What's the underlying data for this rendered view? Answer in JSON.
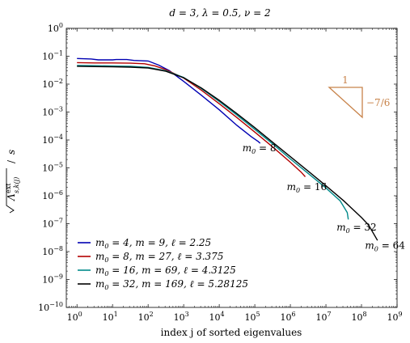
{
  "chart_data": {
    "type": "line",
    "title": "d = 3, λ = 0.5, ν = 2",
    "xlabel": "index j of sorted eigenvalues",
    "ylabel": "√(Λ^ext_{s,k(j)}) / s",
    "x_scale": "log",
    "y_scale": "log",
    "xlim_exp": [
      -0.3,
      9
    ],
    "ylim_exp": [
      -10,
      0
    ],
    "x_ticks": [
      {
        "base": "10",
        "exp": "0",
        "value": 1
      },
      {
        "base": "10",
        "exp": "1",
        "value": 10
      },
      {
        "base": "10",
        "exp": "2",
        "value": 100
      },
      {
        "base": "10",
        "exp": "3",
        "value": 1000
      },
      {
        "base": "10",
        "exp": "4",
        "value": 10000
      },
      {
        "base": "10",
        "exp": "5",
        "value": 100000
      },
      {
        "base": "10",
        "exp": "6",
        "value": 1000000
      },
      {
        "base": "10",
        "exp": "7",
        "value": 10000000
      },
      {
        "base": "10",
        "exp": "8",
        "value": 100000000
      },
      {
        "base": "10",
        "exp": "9",
        "value": 1000000000
      }
    ],
    "y_ticks": [
      {
        "base": "10",
        "exp": "0",
        "value": 1
      },
      {
        "base": "10",
        "exp": "−1",
        "value": 0.1
      },
      {
        "base": "10",
        "exp": "−2",
        "value": 0.01
      },
      {
        "base": "10",
        "exp": "−3",
        "value": 0.001
      },
      {
        "base": "10",
        "exp": "−4",
        "value": 0.0001
      },
      {
        "base": "10",
        "exp": "−5",
        "value": 1e-05
      },
      {
        "base": "10",
        "exp": "−6",
        "value": 1e-06
      },
      {
        "base": "10",
        "exp": "−7",
        "value": 1e-07
      },
      {
        "base": "10",
        "exp": "−8",
        "value": 1e-08
      },
      {
        "base": "10",
        "exp": "−9",
        "value": 1e-09
      },
      {
        "base": "10",
        "exp": "−10",
        "value": 1e-10
      }
    ],
    "series": [
      {
        "name": "m0 = 4, m = 9, ℓ = 2.25",
        "color": "#0000b3",
        "points_log10": [
          [
            0,
            -1.08
          ],
          [
            0.4,
            -1.1
          ],
          [
            0.6,
            -1.13
          ],
          [
            1.0,
            -1.13
          ],
          [
            1.1,
            -1.12
          ],
          [
            1.4,
            -1.12
          ],
          [
            1.6,
            -1.15
          ],
          [
            2.0,
            -1.17
          ],
          [
            2.3,
            -1.32
          ],
          [
            2.6,
            -1.52
          ],
          [
            3.0,
            -1.9
          ],
          [
            3.5,
            -2.4
          ],
          [
            4.0,
            -2.92
          ],
          [
            4.5,
            -3.48
          ],
          [
            4.9,
            -3.88
          ],
          [
            5.1,
            -4.06
          ],
          [
            5.15,
            -4.12
          ]
        ]
      },
      {
        "name": "m0 = 8, m = 27, ℓ = 3.375",
        "color": "#b30000",
        "points_log10": [
          [
            0,
            -1.23
          ],
          [
            0.5,
            -1.24
          ],
          [
            1.0,
            -1.24
          ],
          [
            1.5,
            -1.25
          ],
          [
            1.9,
            -1.27
          ],
          [
            2.2,
            -1.35
          ],
          [
            2.5,
            -1.48
          ],
          [
            3.0,
            -1.78
          ],
          [
            3.5,
            -2.22
          ],
          [
            4.0,
            -2.7
          ],
          [
            4.5,
            -3.2
          ],
          [
            5.0,
            -3.72
          ],
          [
            5.5,
            -4.25
          ],
          [
            6.0,
            -4.8
          ],
          [
            6.3,
            -5.15
          ],
          [
            6.42,
            -5.32
          ]
        ]
      },
      {
        "name": "m0 = 16, m = 69, ℓ = 4.3125",
        "color": "#008a8a",
        "points_log10": [
          [
            0,
            -1.33
          ],
          [
            0.5,
            -1.34
          ],
          [
            1.0,
            -1.35
          ],
          [
            1.5,
            -1.36
          ],
          [
            2.0,
            -1.4
          ],
          [
            2.5,
            -1.52
          ],
          [
            3.0,
            -1.76
          ],
          [
            3.5,
            -2.16
          ],
          [
            4.0,
            -2.62
          ],
          [
            4.5,
            -3.11
          ],
          [
            5.0,
            -3.62
          ],
          [
            5.5,
            -4.14
          ],
          [
            6.0,
            -4.68
          ],
          [
            6.5,
            -5.2
          ],
          [
            7.0,
            -5.72
          ],
          [
            7.4,
            -6.18
          ],
          [
            7.6,
            -6.6
          ],
          [
            7.63,
            -6.85
          ]
        ]
      },
      {
        "name": "m0 = 32, m = 169, ℓ = 5.28125",
        "color": "#000000",
        "points_log10": [
          [
            0,
            -1.36
          ],
          [
            0.5,
            -1.37
          ],
          [
            1.0,
            -1.38
          ],
          [
            1.5,
            -1.39
          ],
          [
            2.0,
            -1.42
          ],
          [
            2.5,
            -1.54
          ],
          [
            3.0,
            -1.77
          ],
          [
            3.5,
            -2.14
          ],
          [
            4.0,
            -2.58
          ],
          [
            4.5,
            -3.06
          ],
          [
            5.0,
            -3.56
          ],
          [
            5.5,
            -4.08
          ],
          [
            6.0,
            -4.6
          ],
          [
            6.5,
            -5.12
          ],
          [
            7.0,
            -5.64
          ],
          [
            7.5,
            -6.18
          ],
          [
            8.0,
            -6.78
          ],
          [
            8.2,
            -7.05
          ],
          [
            8.45,
            -7.6
          ]
        ]
      }
    ],
    "annotations": [
      {
        "text": "m0 = 8",
        "x_log10": 4.65,
        "y_log10": -4.4
      },
      {
        "text": "m0 = 16",
        "x_log10": 5.9,
        "y_log10": -5.8
      },
      {
        "text": "m0 = 32",
        "x_log10": 7.3,
        "y_log10": -7.25
      },
      {
        "text": "m0 = 64",
        "x_log10": 8.1,
        "y_log10": -7.9
      }
    ],
    "slope_triangle": {
      "run_label": "1",
      "rise_label": "−7/6",
      "color": "#c8834a"
    },
    "legend_position": "bottom-left",
    "grid": false
  }
}
